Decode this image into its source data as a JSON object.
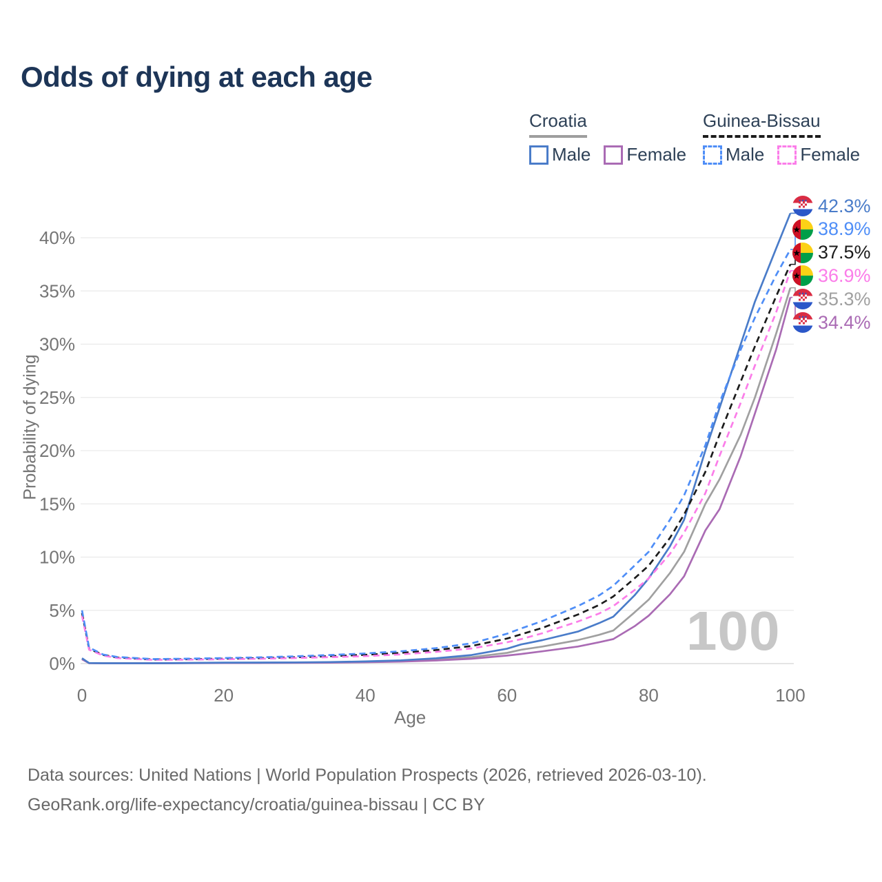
{
  "title": "Odds of dying at each age",
  "watermark_age": "100",
  "legend": {
    "groups": [
      {
        "label": "Croatia",
        "underline_color": "#9e9e9e",
        "underline_style": "solid",
        "items": [
          {
            "label": "Male",
            "color": "#4a7cc9",
            "dash": false
          },
          {
            "label": "Female",
            "color": "#aa6bb4",
            "dash": false
          }
        ]
      },
      {
        "label": "Guinea-Bissau",
        "underline_color": "#1c1c1c",
        "underline_style": "dashed",
        "items": [
          {
            "label": "Male",
            "color": "#4f8ef7",
            "dash": true
          },
          {
            "label": "Female",
            "color": "#fb7de9",
            "dash": true
          }
        ]
      }
    ]
  },
  "footer": {
    "line1": "Data sources: United Nations | World Population Prospects (2026, retrieved 2026-03-10).",
    "line2": "GeoRank.org/life-expectancy/croatia/guinea-bissau | CC BY"
  },
  "chart_data": {
    "type": "line",
    "title": "Odds of dying at each age",
    "xlabel": "Age",
    "ylabel": "Probability of dying",
    "xlim": [
      0,
      100
    ],
    "ylim_pct": [
      0,
      43
    ],
    "grid": "horizontal",
    "legend_position": "top-right",
    "xticks": [
      0,
      20,
      40,
      60,
      80,
      100
    ],
    "yticks_pct": [
      0,
      5,
      10,
      15,
      20,
      25,
      30,
      35,
      40
    ],
    "x": [
      0,
      1,
      3,
      5,
      10,
      15,
      20,
      25,
      30,
      35,
      40,
      45,
      50,
      55,
      60,
      62,
      65,
      70,
      73,
      75,
      78,
      80,
      83,
      85,
      88,
      90,
      93,
      95,
      98,
      100
    ],
    "series": [
      {
        "id": "hr_both",
        "name": "Croatia (both sexes)",
        "color": "#a0a0a0",
        "dash": false,
        "values_pct": [
          0.45,
          0.04,
          0.03,
          0.03,
          0.03,
          0.05,
          0.07,
          0.08,
          0.09,
          0.11,
          0.16,
          0.24,
          0.38,
          0.6,
          1.0,
          1.3,
          1.6,
          2.2,
          2.7,
          3.1,
          4.8,
          6.0,
          8.5,
          10.5,
          15.0,
          17.3,
          21.5,
          25.0,
          31.0,
          35.3
        ],
        "end_label": "35.3%"
      },
      {
        "id": "hr_female",
        "name": "Croatia Female",
        "color": "#aa6bb4",
        "dash": false,
        "values_pct": [
          0.4,
          0.04,
          0.02,
          0.02,
          0.02,
          0.04,
          0.05,
          0.06,
          0.07,
          0.09,
          0.13,
          0.19,
          0.29,
          0.45,
          0.75,
          0.9,
          1.15,
          1.6,
          2.0,
          2.3,
          3.5,
          4.5,
          6.5,
          8.2,
          12.5,
          14.5,
          19.5,
          23.5,
          29.5,
          34.4
        ],
        "end_label": "34.4%"
      },
      {
        "id": "hr_male",
        "name": "Croatia Male",
        "color": "#4a7cc9",
        "dash": false,
        "values_pct": [
          0.5,
          0.05,
          0.03,
          0.03,
          0.03,
          0.06,
          0.09,
          0.1,
          0.11,
          0.14,
          0.2,
          0.3,
          0.5,
          0.8,
          1.4,
          1.8,
          2.2,
          3.0,
          3.8,
          4.4,
          6.4,
          8.0,
          11.0,
          13.5,
          20.0,
          24.0,
          30.0,
          34.0,
          39.0,
          42.3
        ],
        "end_label": "42.3%"
      },
      {
        "id": "gw_both",
        "name": "Guinea-Bissau (both sexes)",
        "color": "#1c1c1c",
        "dash": true,
        "values_pct": [
          4.75,
          1.4,
          0.8,
          0.57,
          0.38,
          0.41,
          0.46,
          0.51,
          0.59,
          0.69,
          0.82,
          1.0,
          1.27,
          1.65,
          2.35,
          2.75,
          3.35,
          4.6,
          5.5,
          6.3,
          8.0,
          9.2,
          11.8,
          14.0,
          18.0,
          21.5,
          26.5,
          29.8,
          34.5,
          37.5
        ],
        "end_label": "37.5%"
      },
      {
        "id": "gw_female",
        "name": "Guinea-Bissau Female",
        "color": "#fb7de9",
        "dash": true,
        "values_pct": [
          4.5,
          1.3,
          0.75,
          0.52,
          0.35,
          0.37,
          0.41,
          0.45,
          0.52,
          0.6,
          0.7,
          0.86,
          1.1,
          1.42,
          2.0,
          2.3,
          2.85,
          3.95,
          4.7,
          5.4,
          6.9,
          8.0,
          10.3,
          12.3,
          16.0,
          19.5,
          24.5,
          28.0,
          33.0,
          36.9
        ],
        "end_label": "36.9%"
      },
      {
        "id": "gw_male",
        "name": "Guinea-Bissau Male",
        "color": "#4f8ef7",
        "dash": true,
        "values_pct": [
          5.0,
          1.5,
          0.85,
          0.62,
          0.42,
          0.46,
          0.52,
          0.58,
          0.68,
          0.8,
          0.95,
          1.15,
          1.45,
          1.9,
          2.8,
          3.3,
          4.0,
          5.4,
          6.4,
          7.3,
          9.2,
          10.5,
          13.5,
          15.8,
          20.5,
          24.5,
          29.5,
          32.5,
          36.5,
          38.9
        ],
        "end_label": "38.9%"
      }
    ],
    "end_labels": [
      {
        "text": "42.3%",
        "value_pct": 42.3,
        "color": "#4a7cc9",
        "flag": "croatia",
        "series": "hr_male"
      },
      {
        "text": "38.9%",
        "value_pct": 38.9,
        "color": "#4f8ef7",
        "flag": "guinea-bissau",
        "series": "gw_male"
      },
      {
        "text": "37.5%",
        "value_pct": 37.5,
        "color": "#1c1c1c",
        "flag": "guinea-bissau",
        "series": "gw_both"
      },
      {
        "text": "36.9%",
        "value_pct": 36.9,
        "color": "#fb7de9",
        "flag": "guinea-bissau",
        "series": "gw_female"
      },
      {
        "text": "35.3%",
        "value_pct": 35.3,
        "color": "#a0a0a0",
        "flag": "croatia",
        "series": "hr_both"
      },
      {
        "text": "34.4%",
        "value_pct": 34.4,
        "color": "#aa6bb4",
        "flag": "croatia",
        "series": "hr_female"
      }
    ]
  }
}
